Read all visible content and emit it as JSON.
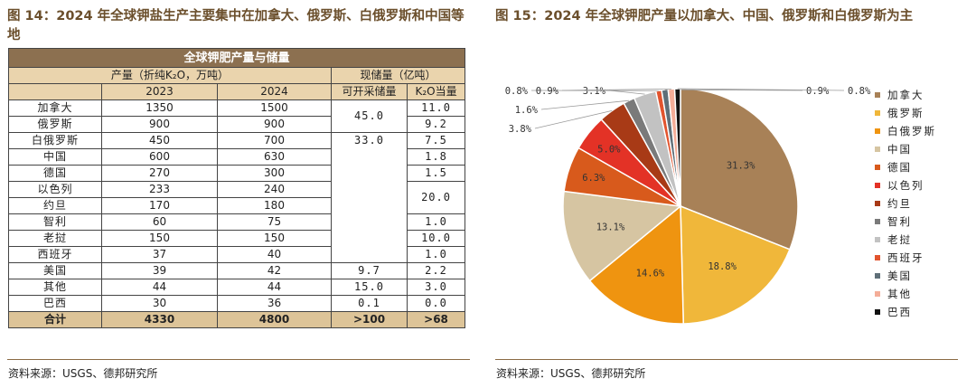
{
  "left": {
    "title": "图 14：2024 年全球钾盐生产主要集中在加拿大、俄罗斯、白俄罗斯和中国等地",
    "table_title": "全球钾肥产量与储量",
    "col_production": "产量（折纯K₂O，万吨）",
    "col_reserve": "现储量（亿吨）",
    "sub_2023": "2023",
    "sub_2024": "2024",
    "sub_mineable": "可开采储量",
    "sub_k2o": "K₂O当量",
    "rows": [
      {
        "name": "加拿大",
        "p2023": "1350",
        "p2024": "1500",
        "mine": "45.0",
        "k2o": "11.0"
      },
      {
        "name": "俄罗斯",
        "p2023": "900",
        "p2024": "900",
        "mine": "",
        "k2o": "9.2"
      },
      {
        "name": "白俄罗斯",
        "p2023": "450",
        "p2024": "700",
        "mine": "33.0",
        "k2o": "7.5"
      },
      {
        "name": "中国",
        "p2023": "600",
        "p2024": "630",
        "mine": "",
        "k2o": "1.8"
      },
      {
        "name": "德国",
        "p2023": "270",
        "p2024": "300",
        "mine": "",
        "k2o": "1.5"
      },
      {
        "name": "以色列",
        "p2023": "233",
        "p2024": "240",
        "mine": "",
        "k2o": "20.0"
      },
      {
        "name": "约旦",
        "p2023": "170",
        "p2024": "180",
        "mine": "",
        "k2o": ""
      },
      {
        "name": "智利",
        "p2023": "60",
        "p2024": "75",
        "mine": "",
        "k2o": "1.0"
      },
      {
        "name": "老挝",
        "p2023": "150",
        "p2024": "150",
        "mine": "",
        "k2o": "10.0"
      },
      {
        "name": "西班牙",
        "p2023": "37",
        "p2024": "40",
        "mine": "",
        "k2o": "1.0"
      },
      {
        "name": "美国",
        "p2023": "39",
        "p2024": "42",
        "mine": "9.7",
        "k2o": "2.2"
      },
      {
        "name": "其他",
        "p2023": "44",
        "p2024": "44",
        "mine": "15.0",
        "k2o": "3.0"
      },
      {
        "name": "巴西",
        "p2023": "30",
        "p2024": "36",
        "mine": "0.1",
        "k2o": "0.0"
      }
    ],
    "total": {
      "name": "合计",
      "p2023": "4330",
      "p2024": "4800",
      "mine": ">100",
      "k2o": ">68"
    },
    "source": "资料来源：USGS、德邦研究所"
  },
  "right": {
    "title": "图 15：2024 年全球钾肥产量以加拿大、中国、俄罗斯和白俄罗斯为主",
    "source": "资料来源：USGS、德邦研究所"
  },
  "chart_data": {
    "type": "pie",
    "title": "",
    "legend_position": "right",
    "slices": [
      {
        "name": "加拿大",
        "value": 31.3,
        "label": "31.3%",
        "color": "#a88157"
      },
      {
        "name": "俄罗斯",
        "value": 18.8,
        "label": "18.8%",
        "color": "#f0b73a"
      },
      {
        "name": "白俄罗斯",
        "value": 14.6,
        "label": "14.6%",
        "color": "#ef9410"
      },
      {
        "name": "中国",
        "value": 13.1,
        "label": "13.1%",
        "color": "#d6c5a2"
      },
      {
        "name": "德国",
        "value": 6.3,
        "label": "6.3%",
        "color": "#d85a1c"
      },
      {
        "name": "以色列",
        "value": 5.0,
        "label": "5.0%",
        "color": "#e33226"
      },
      {
        "name": "约旦",
        "value": 3.8,
        "label": "3.8%",
        "color": "#a83a16"
      },
      {
        "name": "智利",
        "value": 1.6,
        "label": "1.6%",
        "color": "#7a7a7a"
      },
      {
        "name": "老挝",
        "value": 3.1,
        "label": "3.1%",
        "color": "#c2c2c2"
      },
      {
        "name": "西班牙",
        "value": 0.8,
        "label": "0.8%",
        "color": "#e2542e"
      },
      {
        "name": "美国",
        "value": 0.9,
        "label": "0.9%",
        "color": "#5f6f78"
      },
      {
        "name": "其他",
        "value": 0.9,
        "label": "0.9%",
        "color": "#f4ad98"
      },
      {
        "name": "巴西",
        "value": 0.8,
        "label": "0.8%",
        "color": "#111111"
      }
    ]
  }
}
